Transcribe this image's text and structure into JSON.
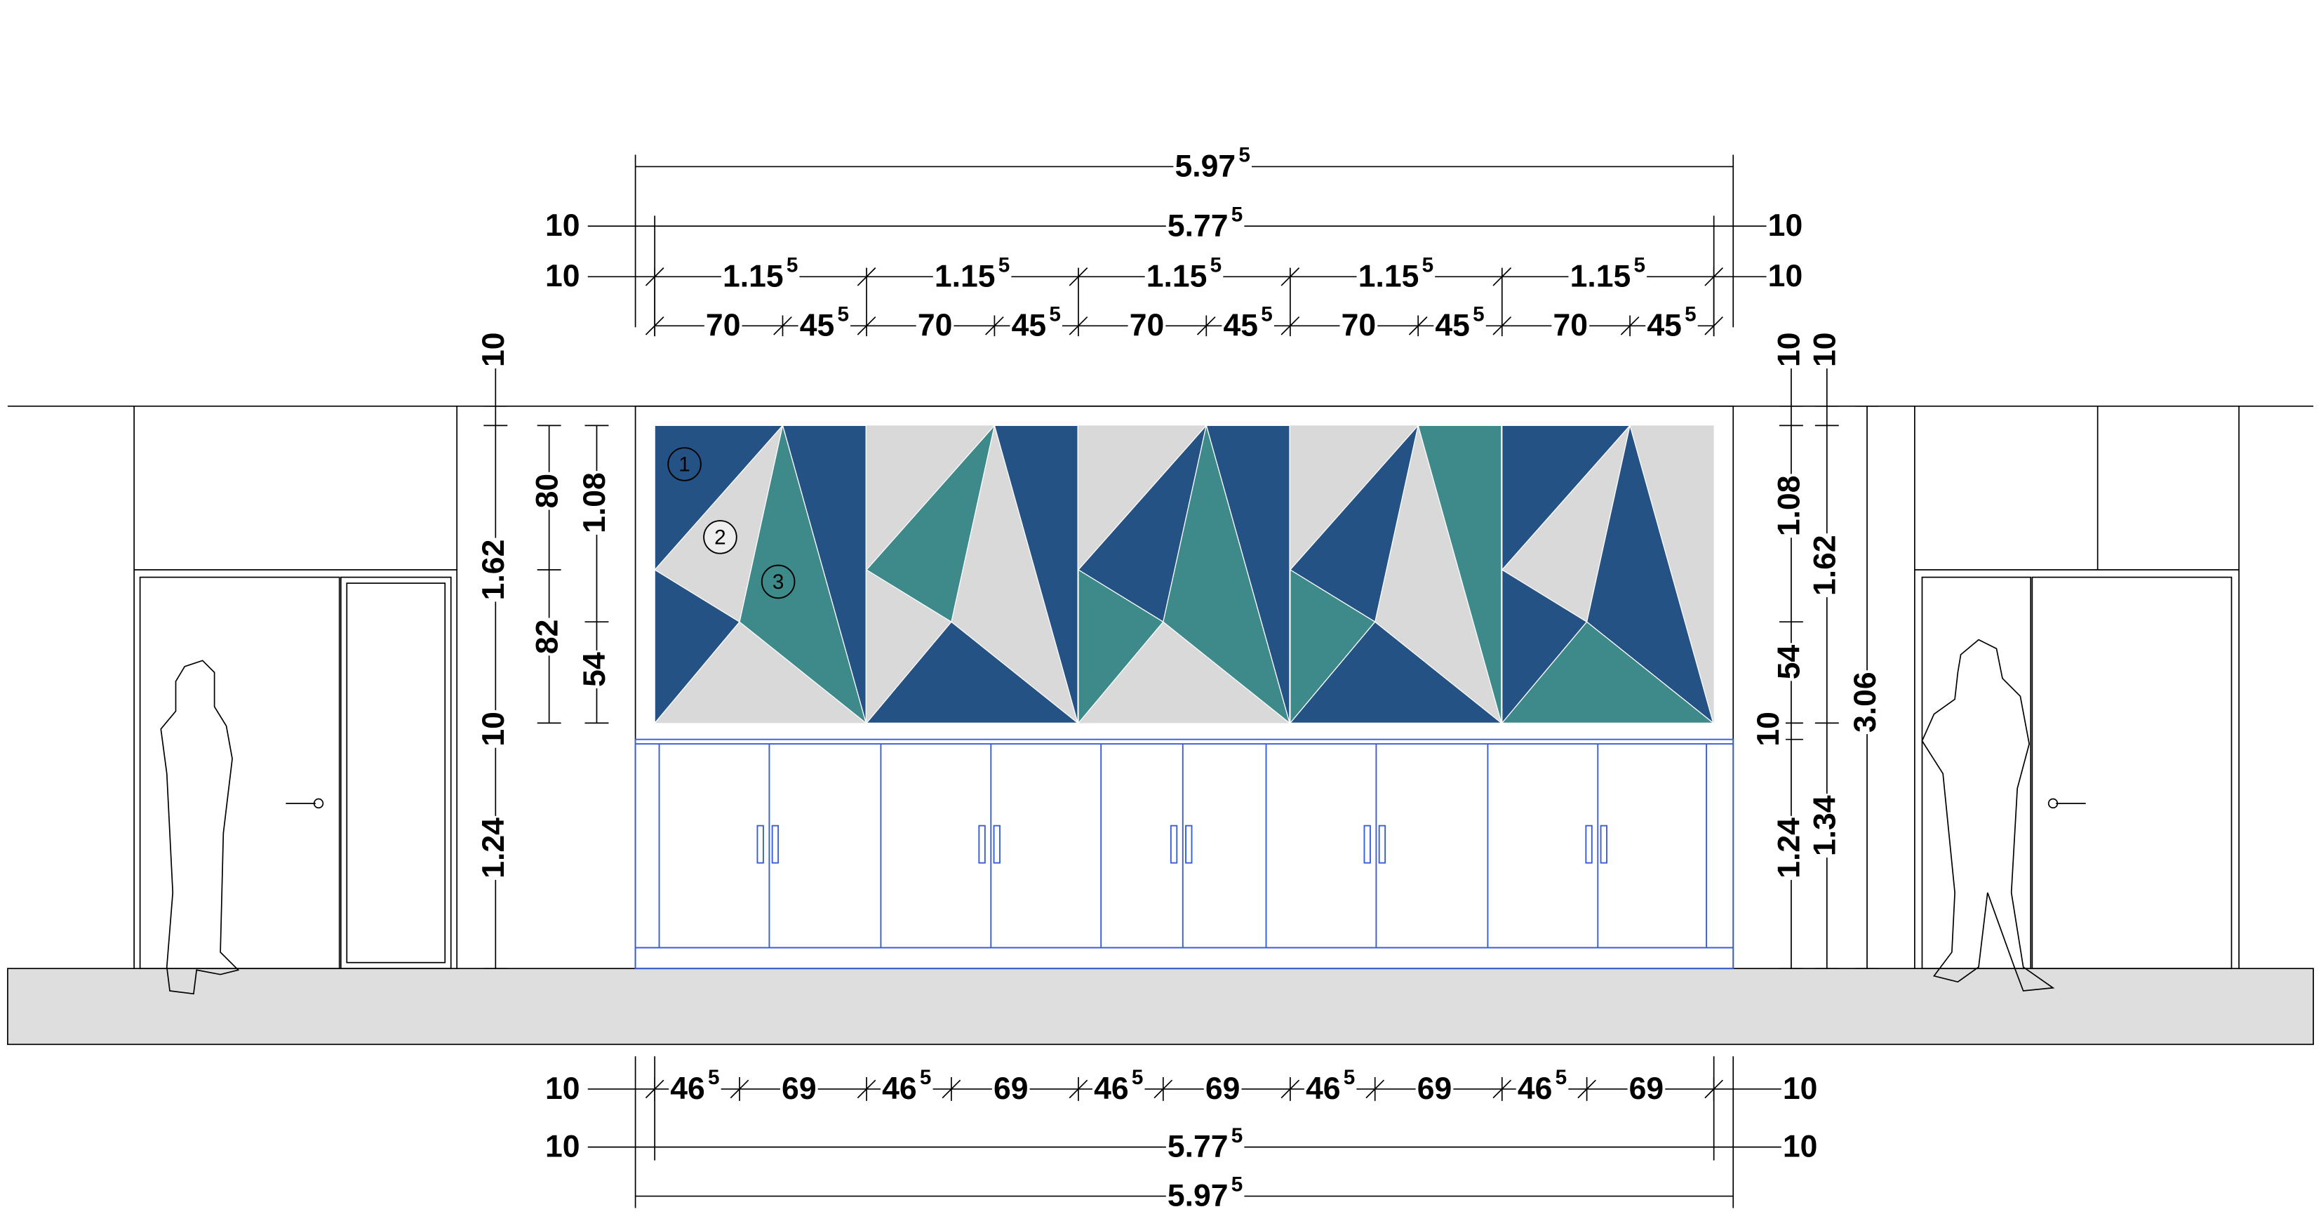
{
  "dimensions": {
    "top": {
      "overall": {
        "main": "5.97",
        "sup": "5"
      },
      "inner": {
        "main": "5.77",
        "sup": "5"
      },
      "inner_left": "10",
      "inner_right": "10",
      "module_left": "10",
      "module_right": "10",
      "modules": [
        {
          "main": "1.15",
          "sup": "5"
        },
        {
          "main": "1.15",
          "sup": "5"
        },
        {
          "main": "1.15",
          "sup": "5"
        },
        {
          "main": "1.15",
          "sup": "5"
        },
        {
          "main": "1.15",
          "sup": "5"
        }
      ],
      "parts": [
        "70",
        {
          "main": "45",
          "sup": "5"
        },
        "70",
        {
          "main": "45",
          "sup": "5"
        },
        "70",
        {
          "main": "45",
          "sup": "5"
        },
        "70",
        {
          "main": "45",
          "sup": "5"
        },
        "70",
        {
          "main": "45",
          "sup": "5"
        }
      ]
    },
    "bottom": {
      "parts_left": "10",
      "parts_right": "10",
      "parts": [
        {
          "main": "46",
          "sup": "5"
        },
        "69",
        {
          "main": "46",
          "sup": "5"
        },
        "69",
        {
          "main": "46",
          "sup": "5"
        },
        "69",
        {
          "main": "46",
          "sup": "5"
        },
        "69",
        {
          "main": "46",
          "sup": "5"
        },
        "69"
      ],
      "inner": {
        "main": "5.77",
        "sup": "5"
      },
      "inner_left": "10",
      "inner_right": "10",
      "overall": {
        "main": "5.97",
        "sup": "5"
      }
    },
    "left": {
      "top_gap": "10",
      "panel_height": "1.62",
      "gap": "10",
      "cabinet_height": "1.24",
      "upper": "80",
      "lower": "82",
      "panel_upper": "1.08",
      "panel_lower": "54"
    },
    "right": {
      "top_gap_a": "10",
      "top_gap_b": "10",
      "panel_upper": "1.08",
      "panel_lower": "54",
      "gap": "10",
      "cabinet_height": "1.24",
      "panel_height": "1.62",
      "lower_height": "1.34",
      "total_height": "3.06"
    }
  },
  "markers": [
    "1",
    "2",
    "3"
  ]
}
